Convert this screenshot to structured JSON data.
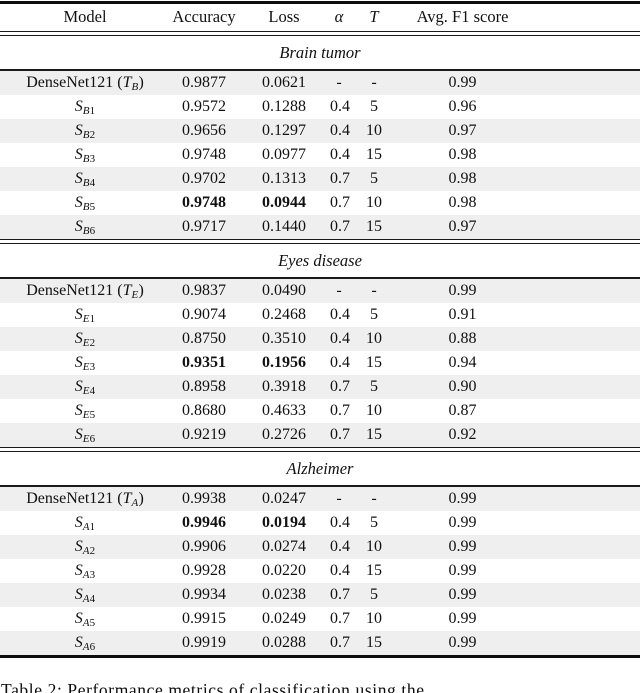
{
  "table": {
    "headers": [
      {
        "label": "Model",
        "math": false
      },
      {
        "label": "Accuracy",
        "math": false
      },
      {
        "label": "Loss",
        "math": false
      },
      {
        "label": "α",
        "math": true
      },
      {
        "label": "T",
        "math": true
      },
      {
        "label": "Avg. F1 score",
        "math": false
      }
    ],
    "sections": [
      {
        "title": "Brain tumor",
        "rows": [
          {
            "model": [
              [
                "n",
                "DenseNet121 ("
              ],
              [
                "i",
                "T"
              ],
              [
                "sub",
                "B"
              ],
              [
                "n",
                ")"
              ]
            ],
            "accuracy": "0.9877",
            "loss": "0.0621",
            "alpha": "-",
            "t": "-",
            "f1": "0.99",
            "bold": false,
            "shaded": true
          },
          {
            "model": [
              [
                "i",
                "S"
              ],
              [
                "sub",
                "B"
              ],
              [
                "subn",
                "1"
              ]
            ],
            "accuracy": "0.9572",
            "loss": "0.1288",
            "alpha": "0.4",
            "t": "5",
            "f1": "0.96",
            "bold": false,
            "shaded": false
          },
          {
            "model": [
              [
                "i",
                "S"
              ],
              [
                "sub",
                "B"
              ],
              [
                "subn",
                "2"
              ]
            ],
            "accuracy": "0.9656",
            "loss": "0.1297",
            "alpha": "0.4",
            "t": "10",
            "f1": "0.97",
            "bold": false,
            "shaded": true
          },
          {
            "model": [
              [
                "i",
                "S"
              ],
              [
                "sub",
                "B"
              ],
              [
                "subn",
                "3"
              ]
            ],
            "accuracy": "0.9748",
            "loss": "0.0977",
            "alpha": "0.4",
            "t": "15",
            "f1": "0.98",
            "bold": false,
            "shaded": false
          },
          {
            "model": [
              [
                "i",
                "S"
              ],
              [
                "sub",
                "B"
              ],
              [
                "subn",
                "4"
              ]
            ],
            "accuracy": "0.9702",
            "loss": "0.1313",
            "alpha": "0.7",
            "t": "5",
            "f1": "0.98",
            "bold": false,
            "shaded": true
          },
          {
            "model": [
              [
                "i",
                "S"
              ],
              [
                "sub",
                "B"
              ],
              [
                "subn",
                "5"
              ]
            ],
            "accuracy": "0.9748",
            "loss": "0.0944",
            "alpha": "0.7",
            "t": "10",
            "f1": "0.98",
            "bold": true,
            "shaded": false
          },
          {
            "model": [
              [
                "i",
                "S"
              ],
              [
                "sub",
                "B"
              ],
              [
                "subn",
                "6"
              ]
            ],
            "accuracy": "0.9717",
            "loss": "0.1440",
            "alpha": "0.7",
            "t": "15",
            "f1": "0.97",
            "bold": false,
            "shaded": true
          }
        ]
      },
      {
        "title": "Eyes disease",
        "rows": [
          {
            "model": [
              [
                "n",
                "DenseNet121 ("
              ],
              [
                "i",
                "T"
              ],
              [
                "sub",
                "E"
              ],
              [
                "n",
                ")"
              ]
            ],
            "accuracy": "0.9837",
            "loss": "0.0490",
            "alpha": "-",
            "t": "-",
            "f1": "0.99",
            "bold": false,
            "shaded": true
          },
          {
            "model": [
              [
                "i",
                "S"
              ],
              [
                "sub",
                "E"
              ],
              [
                "subn",
                "1"
              ]
            ],
            "accuracy": "0.9074",
            "loss": "0.2468",
            "alpha": "0.4",
            "t": "5",
            "f1": "0.91",
            "bold": false,
            "shaded": false
          },
          {
            "model": [
              [
                "i",
                "S"
              ],
              [
                "sub",
                "E"
              ],
              [
                "subn",
                "2"
              ]
            ],
            "accuracy": "0.8750",
            "loss": "0.3510",
            "alpha": "0.4",
            "t": "10",
            "f1": "0.88",
            "bold": false,
            "shaded": true
          },
          {
            "model": [
              [
                "i",
                "S"
              ],
              [
                "sub",
                "E"
              ],
              [
                "subn",
                "3"
              ]
            ],
            "accuracy": "0.9351",
            "loss": "0.1956",
            "alpha": "0.4",
            "t": "15",
            "f1": "0.94",
            "bold": true,
            "shaded": false
          },
          {
            "model": [
              [
                "i",
                "S"
              ],
              [
                "sub",
                "E"
              ],
              [
                "subn",
                "4"
              ]
            ],
            "accuracy": "0.8958",
            "loss": "0.3918",
            "alpha": "0.7",
            "t": "5",
            "f1": "0.90",
            "bold": false,
            "shaded": true
          },
          {
            "model": [
              [
                "i",
                "S"
              ],
              [
                "sub",
                "E"
              ],
              [
                "subn",
                "5"
              ]
            ],
            "accuracy": "0.8680",
            "loss": "0.4633",
            "alpha": "0.7",
            "t": "10",
            "f1": "0.87",
            "bold": false,
            "shaded": false
          },
          {
            "model": [
              [
                "i",
                "S"
              ],
              [
                "sub",
                "E"
              ],
              [
                "subn",
                "6"
              ]
            ],
            "accuracy": "0.9219",
            "loss": "0.2726",
            "alpha": "0.7",
            "t": "15",
            "f1": "0.92",
            "bold": false,
            "shaded": true
          }
        ]
      },
      {
        "title": "Alzheimer",
        "rows": [
          {
            "model": [
              [
                "n",
                "DenseNet121 ("
              ],
              [
                "i",
                "T"
              ],
              [
                "sub",
                "A"
              ],
              [
                "n",
                ")"
              ]
            ],
            "accuracy": "0.9938",
            "loss": "0.0247",
            "alpha": "-",
            "t": "-",
            "f1": "0.99",
            "bold": false,
            "shaded": true
          },
          {
            "model": [
              [
                "i",
                "S"
              ],
              [
                "sub",
                "A"
              ],
              [
                "subn",
                "1"
              ]
            ],
            "accuracy": "0.9946",
            "loss": "0.0194",
            "alpha": "0.4",
            "t": "5",
            "f1": "0.99",
            "bold": true,
            "shaded": false
          },
          {
            "model": [
              [
                "i",
                "S"
              ],
              [
                "sub",
                "A"
              ],
              [
                "subn",
                "2"
              ]
            ],
            "accuracy": "0.9906",
            "loss": "0.0274",
            "alpha": "0.4",
            "t": "10",
            "f1": "0.99",
            "bold": false,
            "shaded": true
          },
          {
            "model": [
              [
                "i",
                "S"
              ],
              [
                "sub",
                "A"
              ],
              [
                "subn",
                "3"
              ]
            ],
            "accuracy": "0.9928",
            "loss": "0.0220",
            "alpha": "0.4",
            "t": "15",
            "f1": "0.99",
            "bold": false,
            "shaded": false
          },
          {
            "model": [
              [
                "i",
                "S"
              ],
              [
                "sub",
                "A"
              ],
              [
                "subn",
                "4"
              ]
            ],
            "accuracy": "0.9934",
            "loss": "0.0238",
            "alpha": "0.7",
            "t": "5",
            "f1": "0.99",
            "bold": false,
            "shaded": true
          },
          {
            "model": [
              [
                "i",
                "S"
              ],
              [
                "sub",
                "A"
              ],
              [
                "subn",
                "5"
              ]
            ],
            "accuracy": "0.9915",
            "loss": "0.0249",
            "alpha": "0.7",
            "t": "10",
            "f1": "0.99",
            "bold": false,
            "shaded": false
          },
          {
            "model": [
              [
                "i",
                "S"
              ],
              [
                "sub",
                "A"
              ],
              [
                "subn",
                "6"
              ]
            ],
            "accuracy": "0.9919",
            "loss": "0.0288",
            "alpha": "0.7",
            "t": "15",
            "f1": "0.99",
            "bold": false,
            "shaded": true
          }
        ]
      }
    ]
  },
  "caption": {
    "text": "Table 2: Performance metrics of classification using the"
  }
}
